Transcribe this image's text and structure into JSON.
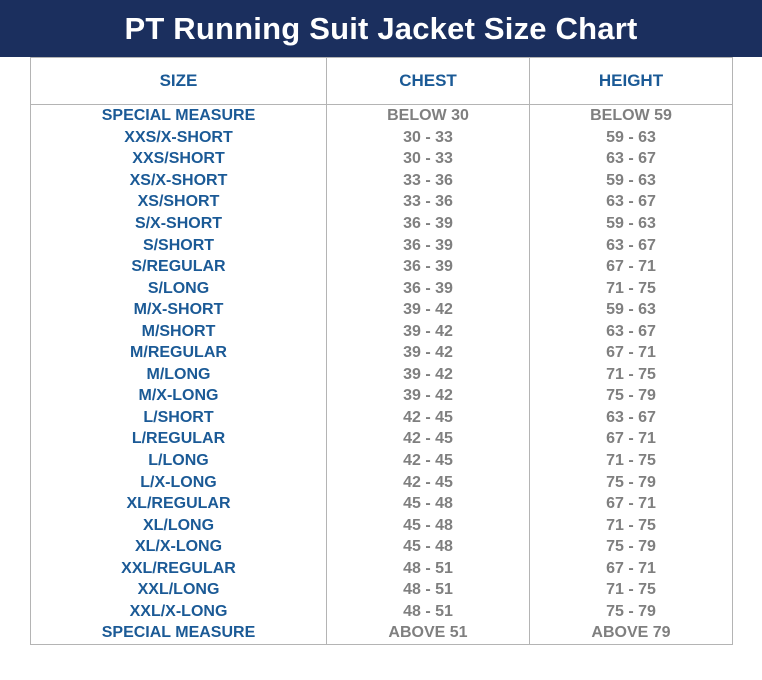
{
  "title": "PT Running Suit Jacket Size Chart",
  "colors": {
    "title_bar": "#1b2f5e",
    "title_text": "#ffffff",
    "size_text": "#1b5a96",
    "value_text": "#7f7f7f",
    "border": "#b4b4b4"
  },
  "table": {
    "headers": [
      "SIZE",
      "CHEST",
      "HEIGHT"
    ],
    "rows": [
      [
        "SPECIAL MEASURE",
        "BELOW 30",
        "BELOW 59"
      ],
      [
        "XXS/X-SHORT",
        "30 - 33",
        "59 - 63"
      ],
      [
        "XXS/SHORT",
        "30 - 33",
        "63 - 67"
      ],
      [
        "XS/X-SHORT",
        "33 - 36",
        "59 - 63"
      ],
      [
        "XS/SHORT",
        "33 - 36",
        "63 - 67"
      ],
      [
        "S/X-SHORT",
        "36 - 39",
        "59 - 63"
      ],
      [
        "S/SHORT",
        "36 - 39",
        "63 - 67"
      ],
      [
        "S/REGULAR",
        "36 - 39",
        "67 - 71"
      ],
      [
        "S/LONG",
        "36 - 39",
        "71 - 75"
      ],
      [
        "M/X-SHORT",
        "39 - 42",
        "59 - 63"
      ],
      [
        "M/SHORT",
        "39 - 42",
        "63 - 67"
      ],
      [
        "M/REGULAR",
        "39 - 42",
        "67 - 71"
      ],
      [
        "M/LONG",
        "39 - 42",
        "71 - 75"
      ],
      [
        "M/X-LONG",
        "39 - 42",
        "75 - 79"
      ],
      [
        "L/SHORT",
        "42 - 45",
        "63 - 67"
      ],
      [
        "L/REGULAR",
        "42 - 45",
        "67 - 71"
      ],
      [
        "L/LONG",
        "42 - 45",
        "71 - 75"
      ],
      [
        "L/X-LONG",
        "42 - 45",
        "75 - 79"
      ],
      [
        "XL/REGULAR",
        "45 - 48",
        "67 - 71"
      ],
      [
        "XL/LONG",
        "45 - 48",
        "71 - 75"
      ],
      [
        "XL/X-LONG",
        "45 - 48",
        "75 - 79"
      ],
      [
        "XXL/REGULAR",
        "48 - 51",
        "67 - 71"
      ],
      [
        "XXL/LONG",
        "48 - 51",
        "71 - 75"
      ],
      [
        "XXL/X-LONG",
        "48 - 51",
        "75 - 79"
      ],
      [
        "SPECIAL MEASURE",
        "ABOVE 51",
        "ABOVE 79"
      ]
    ]
  }
}
